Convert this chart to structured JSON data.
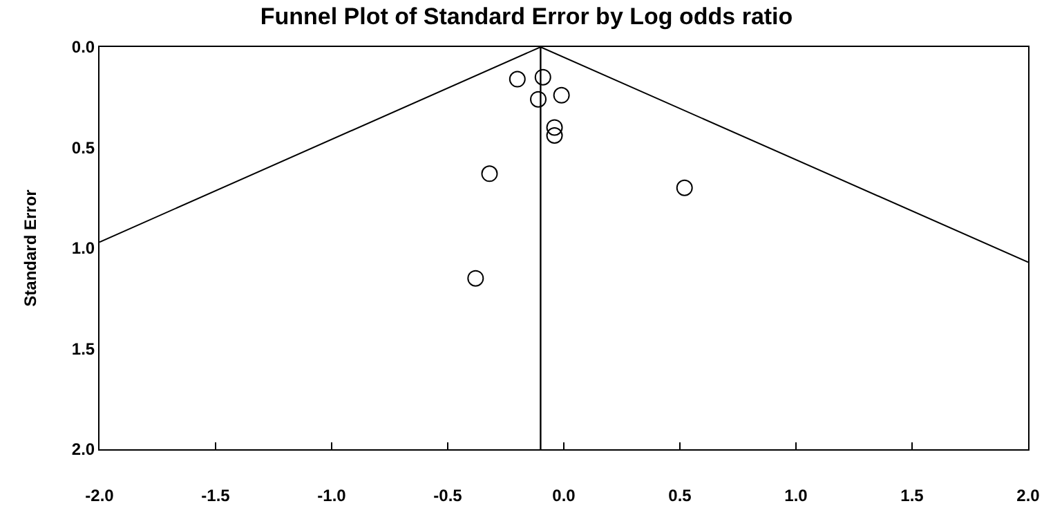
{
  "chart_data": {
    "type": "scatter",
    "title": "Funnel Plot of Standard Error by Log odds ratio",
    "ylabel": "Standard Error",
    "x": [
      -0.2,
      -0.09,
      -0.11,
      -0.01,
      -0.04,
      -0.04,
      -0.32,
      0.52,
      -0.38
    ],
    "series": [
      {
        "color": "#000000",
        "marker": "circle",
        "values": [
          0.16,
          0.15,
          0.26,
          0.24,
          0.4,
          0.44,
          0.63,
          0.7,
          1.15
        ]
      },
      {
        "type": "line",
        "color": "#000000",
        "marker": "none",
        "x": [
          -2.0,
          -0.1,
          2.0
        ],
        "values": [
          0.97,
          0.0,
          1.07
        ]
      }
    ],
    "ref_lines": [
      {
        "axis": "x",
        "value": -0.1,
        "color": "#000000"
      }
    ],
    "line_style": "solid",
    "xlim": [
      -2.0,
      2.0
    ],
    "xticks": [
      {
        "value": -2.0,
        "label": "-2.0"
      },
      {
        "value": -1.5,
        "label": "-1.5"
      },
      {
        "value": -1.0,
        "label": "-1.0"
      },
      {
        "value": -0.5,
        "label": "-0.5"
      },
      {
        "value": 0.0,
        "label": "0.0"
      },
      {
        "value": 0.5,
        "label": "0.5"
      },
      {
        "value": 1.0,
        "label": "1.0"
      },
      {
        "value": 1.5,
        "label": "1.5"
      },
      {
        "value": 2.0,
        "label": "2.0"
      }
    ],
    "ylim": [
      2.0,
      0.0
    ],
    "yticks": [
      {
        "value": 0.0,
        "label": "0.0"
      },
      {
        "value": 0.5,
        "label": "0.5"
      },
      {
        "value": 1.0,
        "label": "1.0"
      },
      {
        "value": 1.5,
        "label": "1.5"
      },
      {
        "value": 2.0,
        "label": "2.0"
      }
    ]
  }
}
